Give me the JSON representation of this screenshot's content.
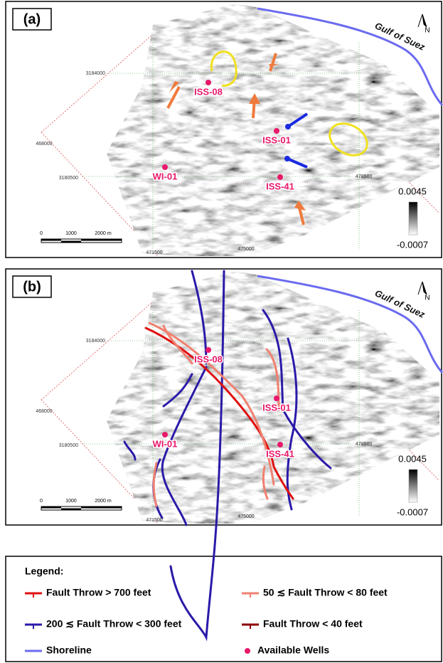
{
  "panels": [
    {
      "label": "(a)",
      "gulf": "Gulf of Suez",
      "north": "N",
      "coords": [
        "3184000",
        "3180500",
        "468000",
        "478500",
        "471500",
        "475000"
      ],
      "wells": [
        "ISS-08",
        "ISS-01",
        "WI-01",
        "ISS-41"
      ],
      "colorbar": [
        "0.0045",
        "-0.0007"
      ],
      "scale": [
        "0",
        "1000",
        "2000 m"
      ]
    },
    {
      "label": "(b)",
      "gulf": "Gulf of Suez",
      "north": "N",
      "coords": [
        "3184000",
        "3180500",
        "468000",
        "478500",
        "471500",
        "475000"
      ],
      "wells": [
        "ISS-08",
        "ISS-01",
        "WI-01",
        "ISS-41"
      ],
      "colorbar": [
        "0.0045",
        "-0.0007"
      ],
      "scale": [
        "0",
        "1000",
        "2000 m"
      ]
    }
  ],
  "legend": {
    "title": "Legend:",
    "items": [
      "Fault Throw > 700 feet",
      "200 ≲ Fault Throw < 300 feet",
      "Shoreline",
      "50 ≲ Fault Throw < 80 feet",
      "Fault Throw < 40 feet",
      "Available Wells"
    ]
  }
}
